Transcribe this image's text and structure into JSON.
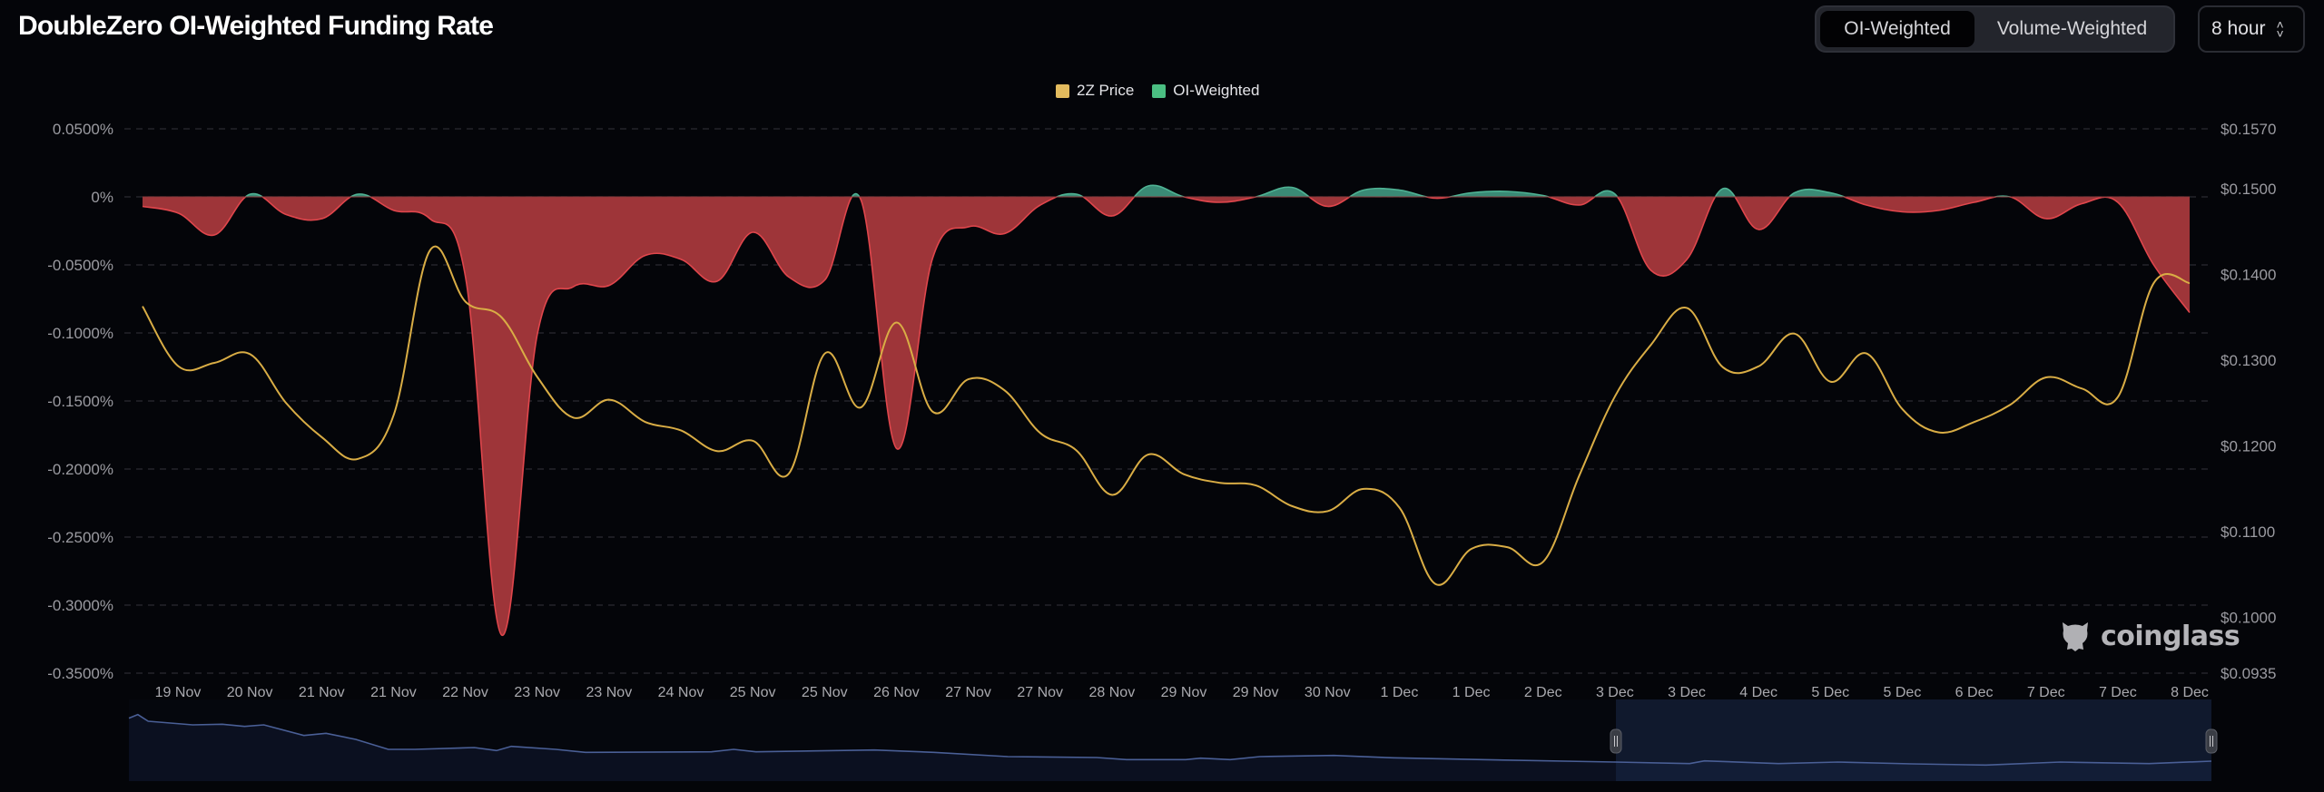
{
  "header": {
    "title": "DoubleZero OI-Weighted Funding Rate",
    "toggle": {
      "options": [
        "OI-Weighted",
        "Volume-Weighted"
      ],
      "selected": "OI-Weighted"
    },
    "interval": {
      "value": "8 hour",
      "icon": "chevron-up-down-icon"
    }
  },
  "watermark": {
    "text": "coinglass",
    "icon": "coinglass-logo-icon"
  },
  "colors": {
    "background": "#040509",
    "price_line": "#d9ad45",
    "price_legend": "#e3bb5e",
    "positive_fill": "#3a8a75",
    "positive_legend": "#4bbf82",
    "negative_fill": "#9e3539",
    "negative_line": "#e0464c",
    "grid": "#2a2b31",
    "navigator_line": "#4a5f96",
    "navigator_fill": "#0b1020",
    "navigator_selection": "#0c1222"
  },
  "chart_data": {
    "type": "area",
    "title": "DoubleZero OI-Weighted Funding Rate",
    "legend": {
      "placement": "top-center",
      "entries": [
        "2Z Price",
        "OI-Weighted"
      ]
    },
    "grid": true,
    "x_tick_labels": [
      "19 Nov",
      "20 Nov",
      "21 Nov",
      "21 Nov",
      "22 Nov",
      "23 Nov",
      "23 Nov",
      "24 Nov",
      "25 Nov",
      "25 Nov",
      "26 Nov",
      "27 Nov",
      "27 Nov",
      "28 Nov",
      "29 Nov",
      "29 Nov",
      "30 Nov",
      "1 Dec",
      "1 Dec",
      "2 Dec",
      "3 Dec",
      "3 Dec",
      "4 Dec",
      "5 Dec",
      "5 Dec",
      "6 Dec",
      "7 Dec",
      "7 Dec",
      "8 Dec"
    ],
    "y_left": {
      "ticks": [
        "0.0500%",
        "0%",
        "-0.0500%",
        "-0.1000%",
        "-0.1500%",
        "-0.2000%",
        "-0.2500%",
        "-0.3000%",
        "-0.3500%"
      ],
      "range": [
        -0.35,
        0.05
      ],
      "unit": "%"
    },
    "y_right": {
      "ticks": [
        "$0.1570",
        "$0.1500",
        "$0.1400",
        "$0.1300",
        "$0.1200",
        "$0.1100",
        "$0.1000",
        "$0.0935"
      ],
      "tick_values": [
        0.157,
        0.15,
        0.14,
        0.13,
        0.12,
        0.11,
        0.1,
        0.0935
      ],
      "range": [
        0.0935,
        0.157
      ]
    },
    "x": [
      "19 Nov 08:00",
      "19 Nov 16:00",
      "20 Nov 00:00",
      "20 Nov 08:00",
      "20 Nov 16:00",
      "21 Nov 00:00",
      "21 Nov 08:00",
      "21 Nov 16:00",
      "22 Nov 00:00",
      "22 Nov 08:00",
      "22 Nov 16:00",
      "23 Nov 00:00",
      "23 Nov 08:00",
      "23 Nov 16:00",
      "24 Nov 00:00",
      "24 Nov 08:00",
      "24 Nov 16:00",
      "25 Nov 00:00",
      "25 Nov 08:00",
      "25 Nov 16:00",
      "26 Nov 00:00",
      "26 Nov 08:00",
      "26 Nov 16:00",
      "27 Nov 00:00",
      "27 Nov 08:00",
      "27 Nov 16:00",
      "28 Nov 00:00",
      "28 Nov 08:00",
      "28 Nov 16:00",
      "29 Nov 00:00",
      "29 Nov 08:00",
      "29 Nov 16:00",
      "30 Nov 00:00",
      "30 Nov 08:00",
      "30 Nov 16:00",
      "1 Dec 00:00",
      "1 Dec 08:00",
      "1 Dec 16:00",
      "2 Dec 00:00",
      "2 Dec 08:00",
      "2 Dec 16:00",
      "3 Dec 00:00",
      "3 Dec 08:00",
      "3 Dec 16:00",
      "4 Dec 00:00",
      "4 Dec 08:00",
      "4 Dec 16:00",
      "5 Dec 00:00",
      "5 Dec 08:00",
      "5 Dec 16:00",
      "6 Dec 00:00",
      "6 Dec 08:00",
      "6 Dec 16:00",
      "7 Dec 00:00",
      "7 Dec 08:00",
      "7 Dec 16:00",
      "8 Dec 00:00",
      "8 Dec 08:00"
    ],
    "series": [
      {
        "name": "OI-Weighted",
        "axis": "left",
        "type": "area",
        "values": [
          -0.007,
          -0.012,
          -0.028,
          0.002,
          -0.013,
          -0.016,
          0.002,
          -0.01,
          -0.016,
          -0.06,
          -0.322,
          -0.1,
          -0.066,
          -0.065,
          -0.043,
          -0.046,
          -0.062,
          -0.026,
          -0.059,
          -0.061,
          -0.002,
          -0.185,
          -0.045,
          -0.022,
          -0.027,
          -0.006,
          0.002,
          -0.014,
          0.008,
          0.0,
          -0.004,
          0.0,
          0.007,
          -0.007,
          0.005,
          0.005,
          -0.001,
          0.003,
          0.004,
          0.001,
          -0.006,
          0.002,
          -0.054,
          -0.046,
          0.006,
          -0.024,
          0.003,
          0.003,
          -0.006,
          -0.011,
          -0.01,
          -0.004,
          0.0,
          -0.016,
          -0.005,
          -0.004,
          -0.05,
          -0.085
        ]
      },
      {
        "name": "2Z Price",
        "axis": "right",
        "type": "line",
        "values": [
          0.1363,
          0.1293,
          0.1297,
          0.1307,
          0.125,
          0.121,
          0.1185,
          0.1237,
          0.1428,
          0.1368,
          0.135,
          0.128,
          0.1233,
          0.1254,
          0.1228,
          0.1218,
          0.1194,
          0.1206,
          0.1168,
          0.1308,
          0.1245,
          0.1344,
          0.124,
          0.1278,
          0.1265,
          0.1215,
          0.1195,
          0.1143,
          0.119,
          0.1167,
          0.1157,
          0.1154,
          0.113,
          0.1124,
          0.115,
          0.1128,
          0.1039,
          0.108,
          0.1082,
          0.1065,
          0.1165,
          0.1258,
          0.1318,
          0.1361,
          0.1292,
          0.1293,
          0.1331,
          0.1275,
          0.1308,
          0.1243,
          0.1216,
          0.1228,
          0.1248,
          0.128,
          0.1267,
          0.1257,
          0.139,
          0.139
        ]
      }
    ]
  }
}
